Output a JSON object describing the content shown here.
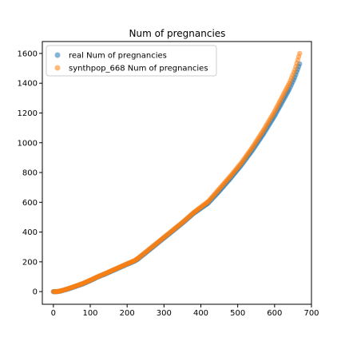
{
  "chart_data": {
    "type": "scatter",
    "title": "Num of pregnancies",
    "xlabel": "",
    "ylabel": "",
    "xlim": [
      -30,
      700
    ],
    "ylim": [
      -85,
      1680
    ],
    "x_ticks": [
      0,
      100,
      200,
      300,
      400,
      500,
      600,
      700
    ],
    "y_ticks": [
      0,
      200,
      400,
      600,
      800,
      1000,
      1200,
      1400,
      1600
    ],
    "grid": false,
    "legend_position": "top-left",
    "series": [
      {
        "name": "real Num of pregnancies",
        "color": "#1f77b4",
        "points": [
          [
            0,
            0
          ],
          [
            10,
            0
          ],
          [
            20,
            4
          ],
          [
            40,
            18
          ],
          [
            60,
            35
          ],
          [
            80,
            52
          ],
          [
            100,
            74
          ],
          [
            120,
            98
          ],
          [
            140,
            118
          ],
          [
            160,
            140
          ],
          [
            180,
            162
          ],
          [
            200,
            184
          ],
          [
            220,
            205
          ],
          [
            230,
            220
          ],
          [
            260,
            280
          ],
          [
            290,
            340
          ],
          [
            320,
            400
          ],
          [
            350,
            460
          ],
          [
            380,
            525
          ],
          [
            420,
            595
          ],
          [
            450,
            675
          ],
          [
            480,
            760
          ],
          [
            510,
            850
          ],
          [
            540,
            950
          ],
          [
            570,
            1060
          ],
          [
            600,
            1180
          ],
          [
            620,
            1270
          ],
          [
            640,
            1360
          ],
          [
            655,
            1440
          ],
          [
            668,
            1530
          ]
        ]
      },
      {
        "name": "synthpop_668 Num of pregnancies",
        "color": "#ff7f0e",
        "points": [
          [
            0,
            0
          ],
          [
            10,
            0
          ],
          [
            20,
            5
          ],
          [
            40,
            20
          ],
          [
            60,
            37
          ],
          [
            80,
            55
          ],
          [
            100,
            77
          ],
          [
            120,
            100
          ],
          [
            140,
            121
          ],
          [
            160,
            143
          ],
          [
            180,
            165
          ],
          [
            200,
            187
          ],
          [
            220,
            208
          ],
          [
            230,
            225
          ],
          [
            260,
            285
          ],
          [
            290,
            345
          ],
          [
            320,
            405
          ],
          [
            350,
            465
          ],
          [
            380,
            530
          ],
          [
            420,
            605
          ],
          [
            450,
            690
          ],
          [
            480,
            775
          ],
          [
            510,
            865
          ],
          [
            540,
            970
          ],
          [
            570,
            1085
          ],
          [
            600,
            1210
          ],
          [
            620,
            1305
          ],
          [
            640,
            1400
          ],
          [
            655,
            1490
          ],
          [
            668,
            1600
          ]
        ]
      }
    ]
  }
}
